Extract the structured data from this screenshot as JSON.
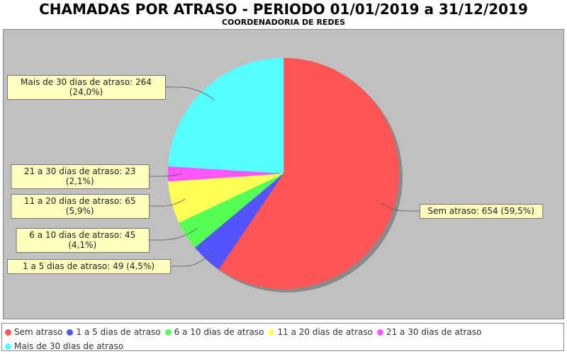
{
  "chart_data": {
    "type": "pie",
    "title": "CHAMADAS POR ATRASO - PERIODO 01/01/2019 a 31/12/2019",
    "subtitle": "COORDENADORIA DE REDES",
    "slices": [
      {
        "name": "Sem atraso",
        "value": 654,
        "percent": "59,5%",
        "color": "#ff5555",
        "label_lines": [
          "Sem atraso: 654 (59,5%)"
        ],
        "label_side": "right"
      },
      {
        "name": "1 a 5 dias de atraso",
        "value": 49,
        "percent": "4,5%",
        "color": "#5555ff",
        "label_lines": [
          "1 a 5 dias de atraso: 49 (4,5%)"
        ],
        "label_side": "left"
      },
      {
        "name": "6 a 10 dias de atraso",
        "value": 45,
        "percent": "4,1%",
        "color": "#55ff55",
        "label_lines": [
          "6 a 10 dias de atraso: 45",
          "(4,1%)"
        ],
        "label_side": "left"
      },
      {
        "name": "11 a 20 dias de atraso",
        "value": 65,
        "percent": "5,9%",
        "color": "#ffff55",
        "label_lines": [
          "11 a 20 dias de atraso: 65",
          "(5,9%)"
        ],
        "label_side": "left"
      },
      {
        "name": "21 a 30 dias de atraso",
        "value": 23,
        "percent": "2,1%",
        "color": "#ff55ff",
        "label_lines": [
          "21 a 30 dias de atraso: 23",
          "(2,1%)"
        ],
        "label_side": "left"
      },
      {
        "name": "Mais de 30 dias de atraso",
        "value": 264,
        "percent": "24,0%",
        "color": "#55ffff",
        "label_lines": [
          "Mais de 30 dias de atraso: 264",
          "(24,0%)"
        ],
        "label_side": "left"
      }
    ],
    "legend_position": "bottom",
    "background_color": "#c0c0c0"
  }
}
